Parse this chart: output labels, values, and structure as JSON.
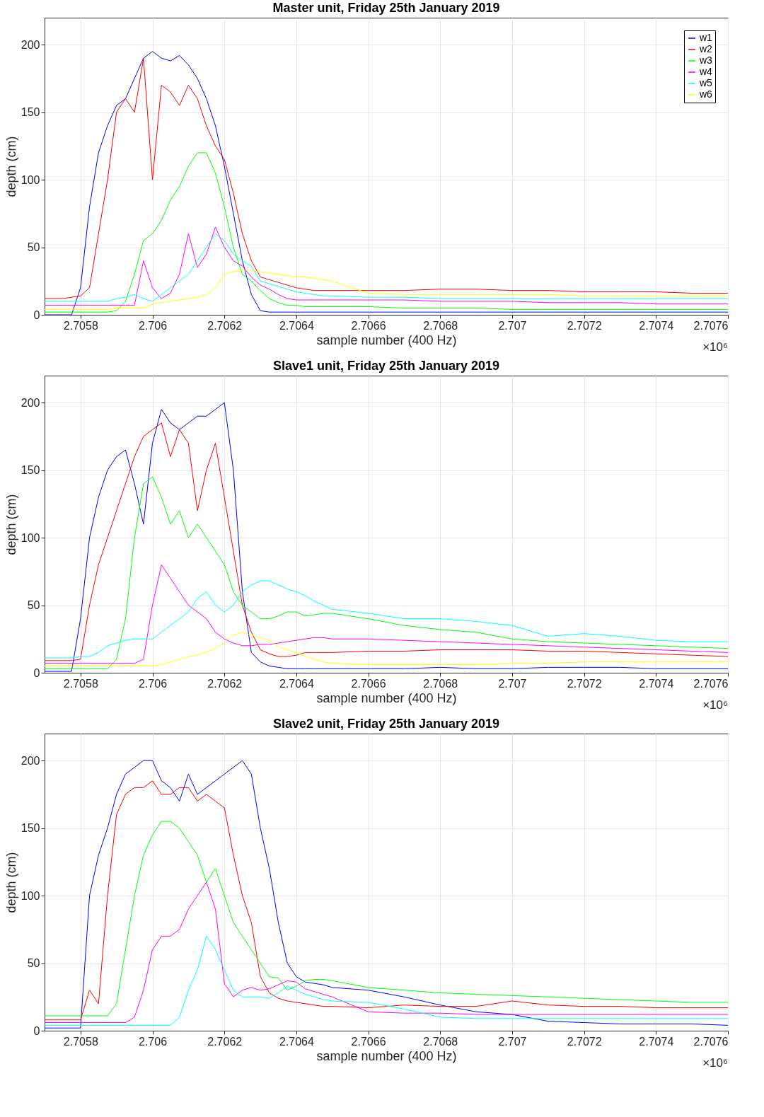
{
  "chart_data": [
    {
      "type": "line",
      "title": "Master unit, Friday 25th January 2019",
      "xlabel": "sample number (400 Hz)",
      "ylabel": "depth (cm)",
      "annotations": [
        "×10⁶"
      ],
      "grid": true,
      "legend": "top right",
      "xlim": [
        2.7057,
        2.7076
      ],
      "ylim": [
        0,
        220
      ],
      "yticks": [
        0,
        50,
        100,
        150,
        200
      ],
      "xticks": [
        2.7058,
        2.706,
        2.7062,
        2.7064,
        2.7066,
        2.7068,
        2.707,
        2.7072,
        2.7074,
        2.7076
      ],
      "x": [
        2.7057,
        2.705725,
        2.70575,
        2.705775,
        2.7058,
        2.705825,
        2.70585,
        2.705875,
        2.7059,
        2.705925,
        2.70595,
        2.705975,
        2.706,
        2.706025,
        2.70605,
        2.706075,
        2.7061,
        2.706125,
        2.70615,
        2.706175,
        2.7062,
        2.706225,
        2.70625,
        2.706275,
        2.7063,
        2.706325,
        2.70635,
        2.706375,
        2.7064,
        2.706425,
        2.70645,
        2.706475,
        2.7065,
        2.7066,
        2.7067,
        2.7068,
        2.7069,
        2.707,
        2.7071,
        2.7072,
        2.7073,
        2.7074,
        2.7075,
        2.7076
      ],
      "series": [
        {
          "name": "w1",
          "color": "#0000ff",
          "values": [
            0,
            0,
            0,
            0,
            20,
            80,
            120,
            140,
            155,
            160,
            175,
            190,
            195,
            190,
            188,
            192,
            185,
            175,
            160,
            140,
            110,
            75,
            40,
            15,
            3,
            2,
            2,
            2,
            2,
            2,
            2,
            2,
            2,
            2,
            2,
            2,
            2,
            2,
            2,
            2,
            2,
            2,
            2,
            2
          ]
        },
        {
          "name": "w2",
          "color": "#ff0000",
          "values": [
            12,
            12,
            12,
            13,
            14,
            20,
            60,
            100,
            150,
            160,
            150,
            190,
            100,
            170,
            165,
            155,
            170,
            160,
            140,
            125,
            115,
            90,
            60,
            40,
            28,
            26,
            24,
            22,
            20,
            19,
            18,
            18,
            18,
            18,
            18,
            19,
            19,
            18,
            18,
            17,
            17,
            17,
            16,
            16
          ]
        },
        {
          "name": "w3",
          "color": "#00ff00",
          "values": [
            2,
            2,
            2,
            2,
            2,
            2,
            2,
            2,
            3,
            10,
            30,
            55,
            60,
            70,
            85,
            95,
            110,
            120,
            120,
            105,
            80,
            50,
            30,
            25,
            18,
            12,
            9,
            7,
            7,
            6,
            6,
            6,
            6,
            6,
            5,
            5,
            5,
            4,
            4,
            4,
            4,
            4,
            4,
            4
          ]
        },
        {
          "name": "w4",
          "color": "#ff00ff",
          "values": [
            7,
            7,
            7,
            7,
            7,
            7,
            7,
            7,
            7,
            7,
            7,
            40,
            20,
            12,
            16,
            30,
            60,
            35,
            45,
            65,
            50,
            40,
            36,
            28,
            22,
            19,
            15,
            12,
            11,
            11,
            11,
            11,
            11,
            11,
            11,
            10,
            10,
            10,
            9,
            9,
            9,
            8,
            8,
            8
          ]
        },
        {
          "name": "w5",
          "color": "#00ffff",
          "values": [
            10,
            10,
            10,
            10,
            10,
            10,
            10,
            10,
            12,
            13,
            15,
            12,
            10,
            15,
            20,
            25,
            30,
            40,
            50,
            60,
            55,
            45,
            40,
            36,
            25,
            23,
            21,
            19,
            17,
            16,
            15,
            14,
            14,
            13,
            13,
            12,
            12,
            12,
            12,
            12,
            12,
            12,
            12,
            12
          ]
        },
        {
          "name": "w6",
          "color": "#ffff00",
          "values": [
            4,
            4,
            4,
            4,
            4,
            4,
            4,
            4,
            5,
            5,
            5,
            5,
            8,
            9,
            10,
            11,
            12,
            13,
            15,
            20,
            30,
            32,
            33,
            33,
            32,
            31,
            30,
            29,
            28,
            28,
            27,
            26,
            25,
            16,
            15,
            15,
            15,
            15,
            15,
            14,
            14,
            14,
            14,
            14
          ]
        }
      ]
    },
    {
      "type": "line",
      "title": "Slave1 unit, Friday 25th January 2019",
      "xlabel": "sample number (400 Hz)",
      "ylabel": "depth (cm)",
      "annotations": [
        "×10⁶"
      ],
      "grid": true,
      "legend": "top right",
      "xlim": [
        2.7057,
        2.7076
      ],
      "ylim": [
        0,
        220
      ],
      "yticks": [
        0,
        50,
        100,
        150,
        200
      ],
      "xticks": [
        2.7058,
        2.706,
        2.7062,
        2.7064,
        2.7066,
        2.7068,
        2.707,
        2.7072,
        2.7074,
        2.7076
      ],
      "x": [
        2.7057,
        2.705725,
        2.70575,
        2.705775,
        2.7058,
        2.705825,
        2.70585,
        2.705875,
        2.7059,
        2.705925,
        2.70595,
        2.705975,
        2.706,
        2.706025,
        2.70605,
        2.706075,
        2.7061,
        2.706125,
        2.70615,
        2.706175,
        2.7062,
        2.706225,
        2.70625,
        2.706275,
        2.7063,
        2.706325,
        2.70635,
        2.706375,
        2.7064,
        2.706425,
        2.70645,
        2.706475,
        2.7065,
        2.7066,
        2.7067,
        2.7068,
        2.7069,
        2.707,
        2.7071,
        2.7072,
        2.7073,
        2.7074,
        2.7075,
        2.7076
      ],
      "series": [
        {
          "name": "w1",
          "color": "#0000ff",
          "values": [
            1,
            1,
            1,
            1,
            40,
            100,
            130,
            150,
            160,
            165,
            140,
            110,
            170,
            195,
            185,
            180,
            185,
            190,
            190,
            195,
            200,
            150,
            60,
            15,
            8,
            5,
            4,
            3,
            3,
            3,
            3,
            3,
            3,
            3,
            3,
            4,
            3,
            3,
            4,
            4,
            4,
            3,
            3,
            3
          ]
        },
        {
          "name": "w2",
          "color": "#ff0000",
          "values": [
            9,
            9,
            9,
            9,
            10,
            50,
            80,
            100,
            120,
            140,
            160,
            175,
            180,
            185,
            160,
            180,
            170,
            120,
            150,
            170,
            130,
            90,
            50,
            30,
            17,
            14,
            12,
            12,
            13,
            15,
            15,
            15,
            15,
            16,
            16,
            17,
            17,
            17,
            16,
            16,
            15,
            14,
            13,
            12
          ]
        },
        {
          "name": "w3",
          "color": "#00ff00",
          "values": [
            3,
            3,
            3,
            3,
            3,
            3,
            3,
            3,
            10,
            40,
            100,
            140,
            145,
            130,
            110,
            120,
            100,
            110,
            100,
            90,
            80,
            60,
            50,
            45,
            40,
            40,
            42,
            45,
            45,
            42,
            43,
            44,
            44,
            40,
            35,
            32,
            30,
            25,
            23,
            22,
            21,
            20,
            19,
            18
          ]
        },
        {
          "name": "w4",
          "color": "#ff00ff",
          "values": [
            7,
            7,
            7,
            7,
            7,
            7,
            7,
            7,
            7,
            7,
            7,
            10,
            50,
            80,
            70,
            60,
            50,
            45,
            40,
            30,
            25,
            22,
            20,
            20,
            21,
            21,
            22,
            23,
            24,
            25,
            26,
            26,
            25,
            25,
            24,
            23,
            22,
            21,
            20,
            19,
            18,
            17,
            16,
            15
          ]
        },
        {
          "name": "w5",
          "color": "#00ffff",
          "values": [
            11,
            11,
            11,
            11,
            12,
            12,
            15,
            20,
            22,
            24,
            25,
            25,
            25,
            30,
            35,
            40,
            45,
            55,
            60,
            50,
            45,
            50,
            60,
            65,
            68,
            68,
            65,
            62,
            60,
            57,
            53,
            50,
            47,
            44,
            40,
            40,
            38,
            35,
            27,
            29,
            27,
            24,
            23,
            23
          ]
        },
        {
          "name": "w6",
          "color": "#ffff00",
          "values": [
            5,
            5,
            5,
            5,
            5,
            5,
            5,
            5,
            5,
            5,
            5,
            5,
            5,
            6,
            8,
            10,
            12,
            13,
            15,
            18,
            22,
            28,
            30,
            28,
            26,
            24,
            19,
            17,
            15,
            12,
            10,
            8,
            7,
            6,
            6,
            6,
            6,
            7,
            7,
            8,
            8,
            8,
            8,
            8
          ]
        }
      ]
    },
    {
      "type": "line",
      "title": "Slave2 unit, Friday 25th January 2019",
      "xlabel": "sample number (400 Hz)",
      "ylabel": "depth (cm)",
      "annotations": [
        "×10⁶"
      ],
      "grid": true,
      "legend": "top right",
      "xlim": [
        2.7057,
        2.7076
      ],
      "ylim": [
        0,
        220
      ],
      "yticks": [
        0,
        50,
        100,
        150,
        200
      ],
      "xticks": [
        2.7058,
        2.706,
        2.7062,
        2.7064,
        2.7066,
        2.7068,
        2.707,
        2.7072,
        2.7074,
        2.7076
      ],
      "x": [
        2.7057,
        2.705725,
        2.70575,
        2.705775,
        2.7058,
        2.705825,
        2.70585,
        2.705875,
        2.7059,
        2.705925,
        2.70595,
        2.705975,
        2.706,
        2.706025,
        2.70605,
        2.706075,
        2.7061,
        2.706125,
        2.70615,
        2.706175,
        2.7062,
        2.706225,
        2.70625,
        2.706275,
        2.7063,
        2.706325,
        2.70635,
        2.706375,
        2.7064,
        2.706425,
        2.70645,
        2.706475,
        2.7065,
        2.7066,
        2.7067,
        2.7068,
        2.7069,
        2.707,
        2.7071,
        2.7072,
        2.7073,
        2.7074,
        2.7075,
        2.7076
      ],
      "series": [
        {
          "name": "w1",
          "color": "#0000ff",
          "values": [
            2,
            2,
            2,
            2,
            2,
            100,
            130,
            150,
            175,
            190,
            195,
            200,
            200,
            185,
            180,
            170,
            190,
            175,
            180,
            185,
            190,
            195,
            200,
            190,
            150,
            120,
            80,
            50,
            40,
            36,
            35,
            34,
            32,
            30,
            25,
            19,
            14,
            12,
            7,
            6,
            5,
            5,
            5,
            4
          ]
        },
        {
          "name": "w2",
          "color": "#ff0000",
          "values": [
            8,
            8,
            8,
            8,
            8,
            30,
            20,
            100,
            160,
            175,
            180,
            180,
            185,
            175,
            175,
            180,
            180,
            170,
            175,
            170,
            165,
            130,
            100,
            80,
            40,
            28,
            24,
            22,
            21,
            20,
            19,
            18,
            18,
            17,
            19,
            18,
            18,
            22,
            19,
            18,
            18,
            17,
            17,
            17
          ]
        },
        {
          "name": "w3",
          "color": "#00ff00",
          "values": [
            11,
            11,
            11,
            11,
            11,
            11,
            11,
            11,
            20,
            60,
            100,
            130,
            145,
            155,
            155,
            150,
            140,
            130,
            110,
            120,
            100,
            80,
            70,
            60,
            50,
            40,
            39,
            30,
            33,
            37,
            38,
            38,
            37,
            32,
            30,
            28,
            27,
            26,
            25,
            24,
            23,
            22,
            21,
            21
          ]
        },
        {
          "name": "w4",
          "color": "#ff00ff",
          "values": [
            6,
            6,
            6,
            6,
            6,
            6,
            6,
            6,
            6,
            6,
            10,
            30,
            60,
            70,
            70,
            75,
            90,
            100,
            110,
            90,
            35,
            25,
            30,
            32,
            30,
            31,
            34,
            37,
            36,
            31,
            29,
            27,
            25,
            14,
            13,
            13,
            12,
            12,
            12,
            12,
            12,
            12,
            12,
            12
          ]
        },
        {
          "name": "w5",
          "color": "#00ffff",
          "values": [
            4,
            4,
            4,
            4,
            4,
            4,
            4,
            4,
            4,
            4,
            4,
            4,
            4,
            4,
            4,
            10,
            30,
            45,
            70,
            60,
            45,
            30,
            25,
            25,
            25,
            24,
            28,
            33,
            30,
            27,
            25,
            23,
            22,
            21,
            16,
            10,
            9,
            9,
            9,
            9,
            9,
            9,
            9,
            9
          ]
        },
        {
          "name": "w6",
          "color": "#ffff00",
          "values": [
            null,
            null,
            null,
            null,
            null,
            null,
            null,
            null,
            null,
            null,
            null,
            null,
            null,
            null,
            null,
            null,
            null,
            null,
            null,
            null,
            null,
            null,
            null,
            null,
            null,
            null,
            null,
            null,
            null,
            null,
            null,
            null,
            null,
            null,
            null,
            null,
            null,
            null,
            null,
            null,
            null,
            null,
            null,
            null
          ]
        }
      ]
    }
  ]
}
